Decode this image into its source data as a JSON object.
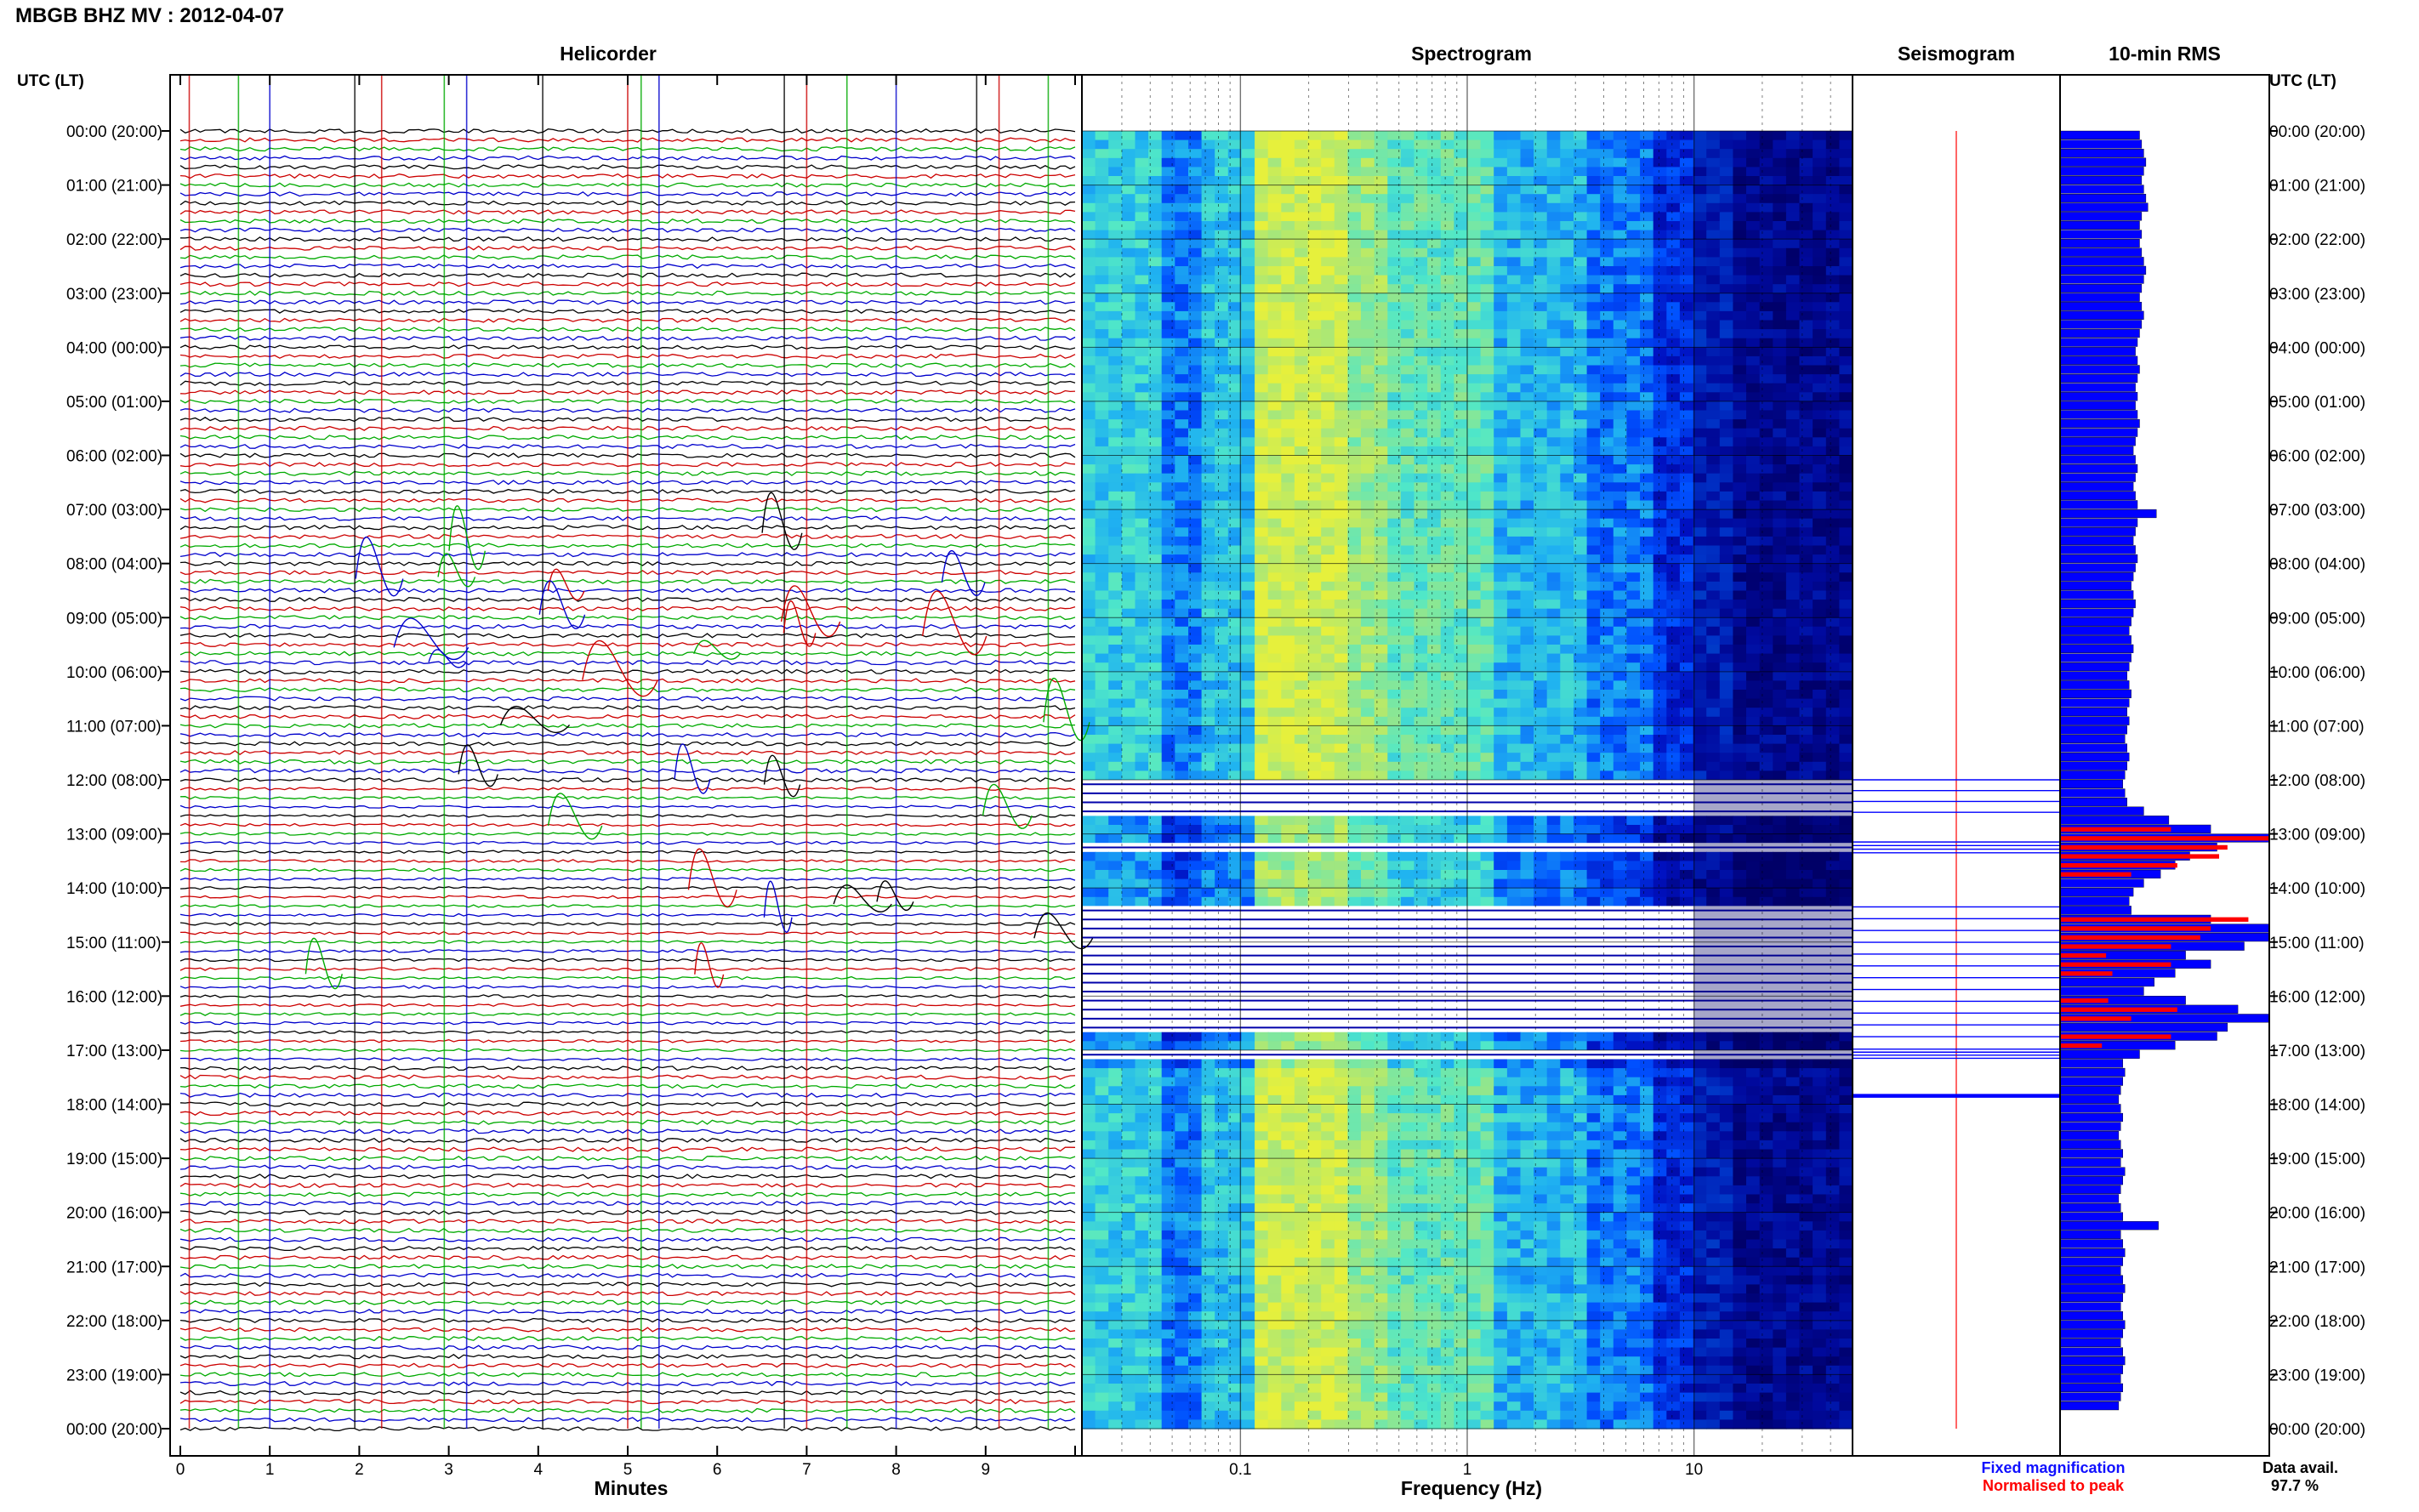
{
  "header": {
    "title": "MBGB BHZ MV : 2012-04-07",
    "left_col_label": "UTC (LT)",
    "right_col_label": "UTC (LT)"
  },
  "panels": {
    "helicorder": "Helicorder",
    "spectrogram": "Spectrogram",
    "seismogram": "Seismogram",
    "rms": "10-min RMS"
  },
  "axes": {
    "minutes_label": "Minutes",
    "frequency_label": "Frequency (Hz)"
  },
  "legend": {
    "fixed": "Fixed magnification",
    "normalised": "Normalised to peak",
    "fixed_color": "#1010ff",
    "normalised_color": "#ff0000"
  },
  "data_avail": {
    "label": "Data avail.",
    "value": "97.7 %"
  },
  "colors": {
    "trace_palette": [
      "#000000",
      "#cc0000",
      "#00aa00",
      "#0000cc"
    ],
    "rms_fixed": "#0000ff",
    "rms_normalised": "#ff0000"
  },
  "chart_data": [
    {
      "type": "line",
      "title": "Helicorder",
      "xlabel": "Minutes",
      "xlim": [
        0,
        10
      ],
      "x_ticks": [
        "0",
        "1",
        "2",
        "3",
        "4",
        "5",
        "6",
        "7",
        "8",
        "9"
      ],
      "rows_per_hour": 6,
      "y_ticks": [
        "00:00 (20:00)",
        "01:00 (21:00)",
        "02:00 (22:00)",
        "03:00 (23:00)",
        "04:00 (00:00)",
        "05:00 (01:00)",
        "06:00 (02:00)",
        "07:00 (03:00)",
        "08:00 (04:00)",
        "09:00 (05:00)",
        "10:00 (06:00)",
        "11:00 (07:00)",
        "12:00 (08:00)",
        "13:00 (09:00)",
        "14:00 (10:00)",
        "15:00 (11:00)",
        "16:00 (12:00)",
        "17:00 (13:00)",
        "18:00 (14:00)",
        "19:00 (15:00)",
        "20:00 (16:00)",
        "21:00 (17:00)",
        "22:00 (18:00)",
        "23:00 (19:00)",
        "00:00 (20:00)"
      ]
    },
    {
      "type": "heatmap",
      "title": "Spectrogram",
      "xlabel": "Frequency (Hz)",
      "x_scale": "log",
      "xlim": [
        0.02,
        50
      ],
      "x_ticks": [
        0.1,
        1,
        10
      ],
      "colormap": [
        "#00006a",
        "#0010c0",
        "#0050ff",
        "#20b4f0",
        "#50e8c8",
        "#a0e680",
        "#e6f03c"
      ],
      "gaps_utc_hours": [
        [
          12.0,
          12.6
        ],
        [
          13.15,
          13.35
        ],
        [
          14.35,
          16.75
        ],
        [
          16.98,
          17.15
        ],
        [
          17.82,
          17.87
        ]
      ]
    },
    {
      "type": "line",
      "title": "Seismogram",
      "y_range_utc_hours": [
        0,
        24
      ]
    },
    {
      "type": "bar",
      "title": "10-min RMS",
      "orientation": "horizontal",
      "bin_minutes": 10,
      "values_relative": [
        0.38,
        0.39,
        0.4,
        0.41,
        0.4,
        0.39,
        0.4,
        0.41,
        0.42,
        0.39,
        0.38,
        0.39,
        0.38,
        0.39,
        0.4,
        0.41,
        0.4,
        0.39,
        0.38,
        0.39,
        0.4,
        0.39,
        0.38,
        0.37,
        0.36,
        0.37,
        0.38,
        0.37,
        0.36,
        0.37,
        0.36,
        0.37,
        0.38,
        0.37,
        0.36,
        0.35,
        0.36,
        0.37,
        0.36,
        0.35,
        0.36,
        0.37,
        0.46,
        0.37,
        0.36,
        0.35,
        0.36,
        0.37,
        0.36,
        0.35,
        0.34,
        0.35,
        0.36,
        0.35,
        0.34,
        0.33,
        0.34,
        0.35,
        0.34,
        0.33,
        0.32,
        0.33,
        0.34,
        0.33,
        0.32,
        0.33,
        0.32,
        0.31,
        0.32,
        0.33,
        0.32,
        0.31,
        0.3,
        0.31,
        0.32,
        0.4,
        0.52,
        0.72,
        1.0,
        0.75,
        0.62,
        0.55,
        0.48,
        0.4,
        0.35,
        0.33,
        0.34,
        0.72,
        1.0,
        1.0,
        0.88,
        0.6,
        0.72,
        0.55,
        0.45,
        0.4,
        0.6,
        0.85,
        1.0,
        0.8,
        0.75,
        0.55,
        0.38,
        0.3,
        0.31,
        0.3,
        0.29,
        0.28,
        0.29,
        0.3,
        0.29,
        0.28,
        0.29,
        0.3,
        0.29,
        0.31,
        0.3,
        0.29,
        0.28,
        0.29,
        0.3,
        0.47,
        0.29,
        0.3,
        0.31,
        0.3,
        0.29,
        0.3,
        0.31,
        0.3,
        0.29,
        0.3,
        0.31,
        0.3,
        0.29,
        0.3,
        0.31,
        0.3,
        0.29,
        0.3,
        0.29,
        0.28
      ],
      "normalised_relative": [
        0,
        0,
        0,
        0,
        0,
        0,
        0,
        0,
        0,
        0,
        0,
        0,
        0,
        0,
        0,
        0,
        0,
        0,
        0,
        0,
        0,
        0,
        0,
        0,
        0,
        0,
        0,
        0,
        0,
        0,
        0,
        0,
        0,
        0,
        0,
        0,
        0,
        0,
        0,
        0,
        0,
        0,
        0,
        0,
        0,
        0,
        0,
        0,
        0,
        0,
        0,
        0,
        0,
        0,
        0,
        0,
        0,
        0,
        0,
        0,
        0,
        0,
        0,
        0,
        0,
        0,
        0,
        0,
        0,
        0,
        0,
        0,
        0,
        0,
        0,
        0,
        0,
        0.53,
        1.0,
        0.8,
        0.76,
        0.56,
        0.34,
        0,
        0,
        0,
        0,
        0.9,
        0.72,
        0.67,
        0.53,
        0.22,
        0.53,
        0.25,
        0,
        0,
        0.23,
        0.56,
        0.34,
        0,
        0.53,
        0.2,
        0,
        0,
        0,
        0,
        0,
        0,
        0,
        0,
        0,
        0,
        0,
        0,
        0,
        0,
        0,
        0,
        0,
        0,
        0,
        0,
        0,
        0,
        0,
        0,
        0,
        0,
        0,
        0,
        0,
        0,
        0,
        0,
        0,
        0,
        0,
        0,
        0,
        0,
        0,
        0,
        0,
        0,
        0,
        0
      ]
    }
  ]
}
